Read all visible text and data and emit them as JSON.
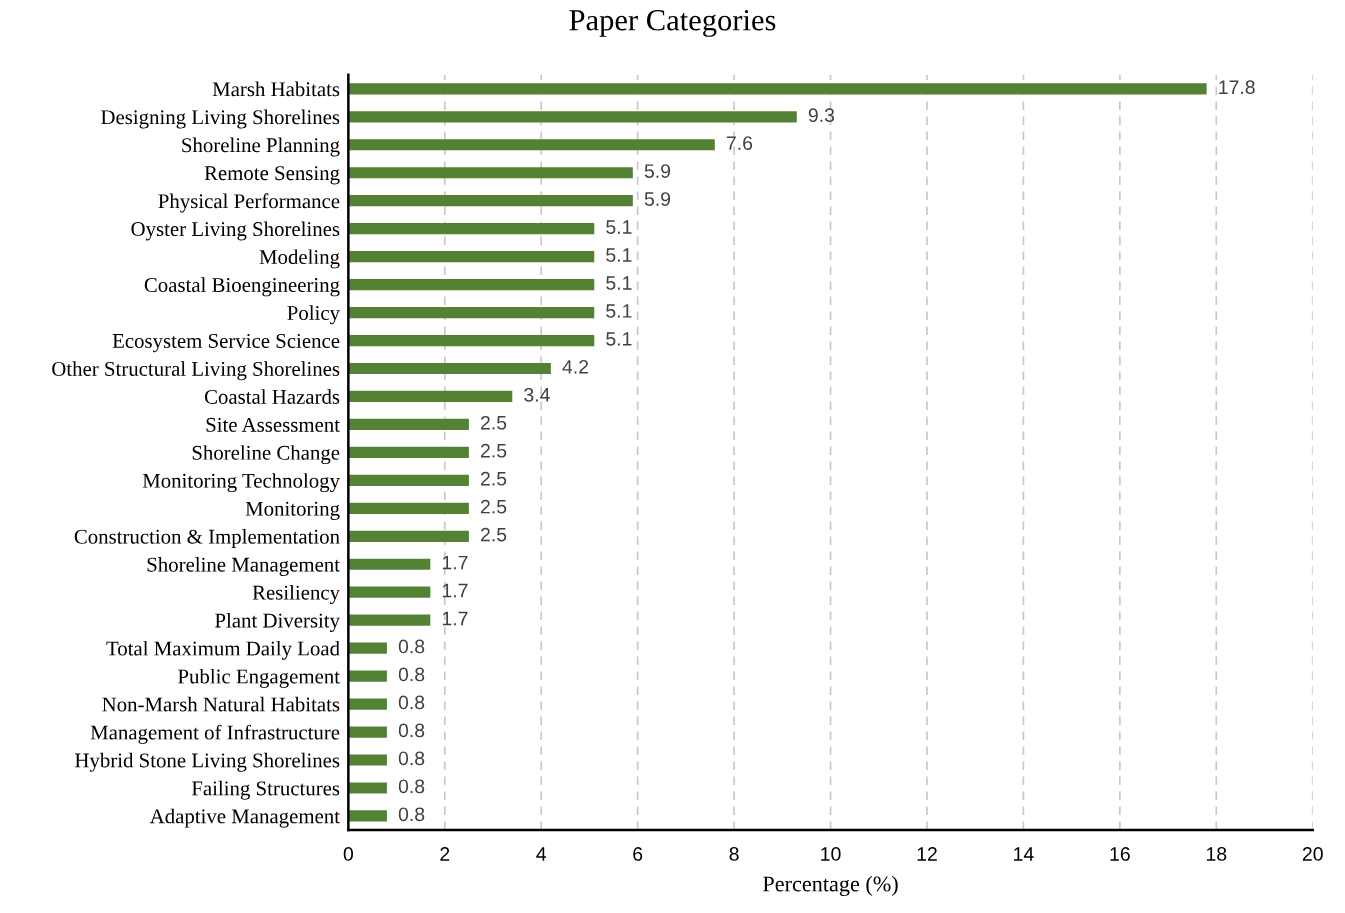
{
  "chart_data": {
    "type": "bar",
    "orientation": "horizontal",
    "title": "Paper Categories",
    "xlabel": "Percentage (%)",
    "categories": [
      "Marsh Habitats",
      "Designing Living Shorelines",
      "Shoreline Planning",
      "Remote Sensing",
      "Physical Performance",
      "Oyster Living Shorelines",
      "Modeling",
      "Coastal Bioengineering",
      "Policy",
      "Ecosystem Service Science",
      "Other Structural Living Shorelines",
      "Coastal Hazards",
      "Site Assessment",
      "Shoreline Change",
      "Monitoring Technology",
      "Monitoring",
      "Construction & Implementation",
      "Shoreline Management",
      "Resiliency",
      "Plant Diversity",
      "Total Maximum Daily Load",
      "Public Engagement",
      "Non-Marsh Natural Habitats",
      "Management of Infrastructure",
      "Hybrid Stone Living Shorelines",
      "Failing Structures",
      "Adaptive Management"
    ],
    "values": [
      17.8,
      9.3,
      7.6,
      5.9,
      5.9,
      5.1,
      5.1,
      5.1,
      5.1,
      5.1,
      4.2,
      3.4,
      2.5,
      2.5,
      2.5,
      2.5,
      2.5,
      1.7,
      1.7,
      1.7,
      0.8,
      0.8,
      0.8,
      0.8,
      0.8,
      0.8,
      0.8
    ],
    "color": "#548235",
    "data_labels": true,
    "xlim": [
      0,
      20
    ],
    "xticks": [
      0,
      2,
      4,
      6,
      8,
      10,
      12,
      14,
      16,
      18,
      20
    ],
    "grid": "x",
    "legend": false
  }
}
